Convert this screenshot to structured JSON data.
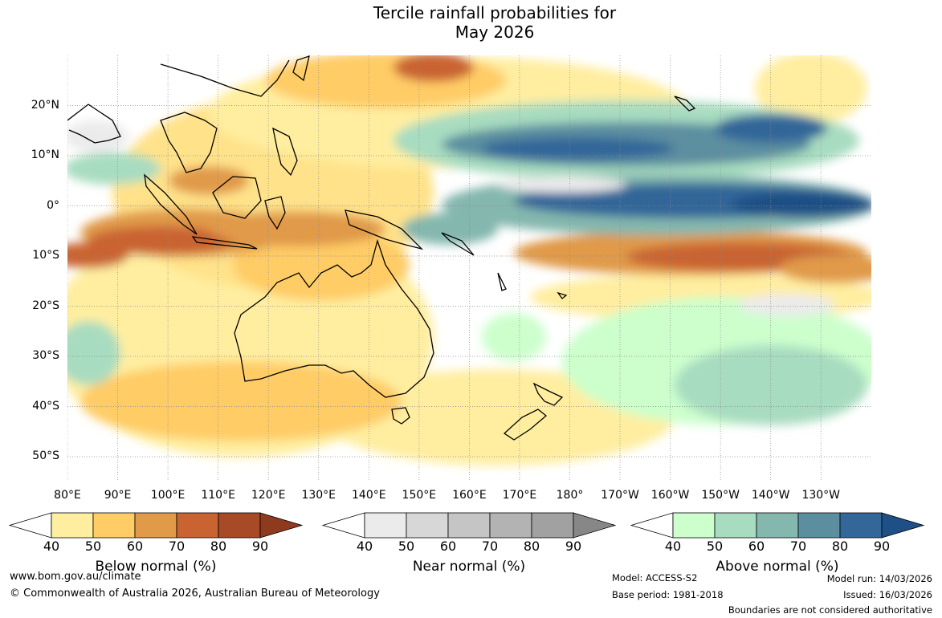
{
  "title": {
    "line1": "Tercile rainfall probabilities for",
    "line2": "May 2026"
  },
  "map": {
    "lat_labels": [
      "20°N",
      "10°N",
      "0°",
      "10°S",
      "20°S",
      "30°S",
      "40°S",
      "50°S"
    ],
    "lat_values": [
      20,
      10,
      0,
      -10,
      -20,
      -30,
      -40,
      -50
    ],
    "lon_labels": [
      "80°E",
      "90°E",
      "100°E",
      "110°E",
      "120°E",
      "130°E",
      "140°E",
      "150°E",
      "160°E",
      "170°E",
      "180°",
      "170°W",
      "160°W",
      "150°W",
      "140°W",
      "130°W"
    ],
    "lon_values": [
      80,
      90,
      100,
      110,
      120,
      130,
      140,
      150,
      160,
      170,
      180,
      190,
      200,
      210,
      220,
      230
    ],
    "lat_range": [
      -55,
      30
    ],
    "lon_range": [
      80,
      240
    ]
  },
  "legends": {
    "below": {
      "label": "Below normal (%)",
      "ticks": [
        "40",
        "50",
        "60",
        "70",
        "80",
        "90"
      ],
      "colors": [
        "#ffeea0",
        "#ffcc66",
        "#e09a48",
        "#c96432",
        "#a84a26",
        "#8e3a1e"
      ]
    },
    "near": {
      "label": "Near normal (%)",
      "ticks": [
        "40",
        "50",
        "60",
        "70",
        "80",
        "90"
      ],
      "colors": [
        "#ebebeb",
        "#d7d7d7",
        "#c5c5c5",
        "#b3b3b3",
        "#a1a1a1",
        "#878787"
      ]
    },
    "above": {
      "label": "Above normal (%)",
      "ticks": [
        "40",
        "50",
        "60",
        "70",
        "80",
        "90"
      ],
      "colors": [
        "#ccffcc",
        "#a8dcc0",
        "#84b7ae",
        "#5b8fa0",
        "#336699",
        "#1e4f86"
      ]
    }
  },
  "footer": {
    "url": "www.bom.gov.au/climate",
    "copyright": "© Commonwealth of Australia 2026, Australian Bureau of Meteorology",
    "model": "Model: ACCESS-S2",
    "base_period": "Base period: 1981-2018",
    "model_run": "Model run: 14/03/2026",
    "issued": "Issued: 16/03/2026",
    "disclaimer": "Boundaries are not considered authoritative"
  }
}
